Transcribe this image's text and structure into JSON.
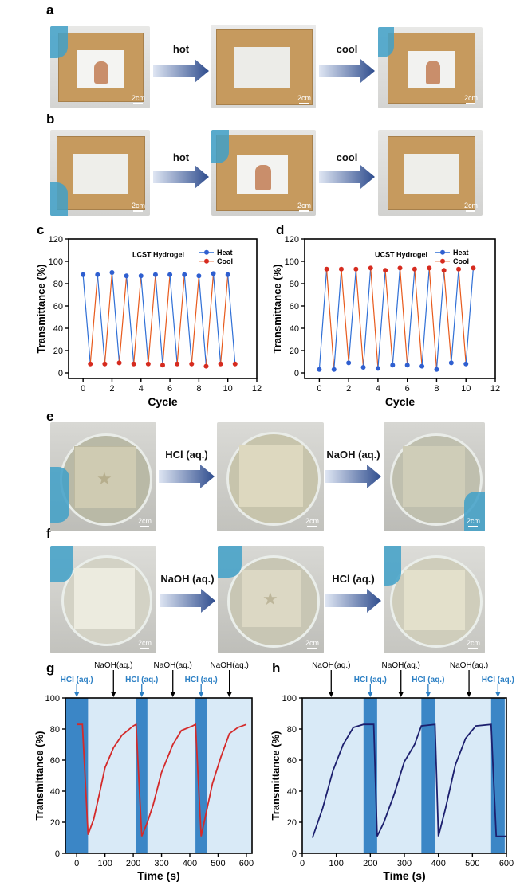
{
  "panels": {
    "a": "a",
    "b": "b",
    "c": "c",
    "d": "d",
    "e": "e",
    "f": "f",
    "g": "g",
    "h": "h"
  },
  "photo_rows": {
    "a": {
      "arrows": [
        "hot",
        "cool"
      ],
      "scales": [
        "2cm",
        "2cm",
        "2cm"
      ]
    },
    "b": {
      "arrows": [
        "hot",
        "cool"
      ],
      "scales": [
        "2cm",
        "2cm",
        "2cm"
      ]
    },
    "e": {
      "arrows": [
        "HCl (aq.)",
        "NaOH (aq.)"
      ],
      "scales": [
        "2cm",
        "2cm",
        "2cm"
      ]
    },
    "f": {
      "arrows": [
        "NaOH (aq.)",
        "HCl (aq.)"
      ],
      "scales": [
        "2cm",
        "2cm",
        "2cm"
      ]
    }
  },
  "colors": {
    "heat": "#2f6fd6",
    "cool": "#e85a1c",
    "heat_marker": "#2f5fd0",
    "cool_marker": "#d62b1f",
    "acid_band": "#3b86c6",
    "base_band": "#d9eaf7",
    "line_g": "#d42a2a",
    "line_h": "#1c1f6e",
    "label_blue": "#2b7fc4"
  },
  "chart_data": [
    {
      "id": "c",
      "type": "line",
      "title": "LCST Hydrogel",
      "xlabel": "Cycle",
      "ylabel": "Transmittance (%)",
      "xlim": [
        -1,
        12
      ],
      "ylim": [
        -5,
        120
      ],
      "xticks": [
        0,
        2,
        4,
        6,
        8,
        10,
        12
      ],
      "yticks": [
        0,
        20,
        40,
        60,
        80,
        100,
        120
      ],
      "series": [
        {
          "name": "Heat",
          "x": [
            0,
            1,
            2,
            3,
            4,
            5,
            6,
            7,
            8,
            9,
            10
          ],
          "y": [
            88,
            88,
            90,
            87,
            87,
            88,
            88,
            88,
            87,
            89,
            88
          ]
        },
        {
          "name": "Cool",
          "x": [
            0.5,
            1.5,
            2.5,
            3.5,
            4.5,
            5.5,
            6.5,
            7.5,
            8.5,
            9.5,
            10.5
          ],
          "y": [
            8,
            8,
            9,
            8,
            8,
            7,
            8,
            8,
            6,
            8,
            8
          ]
        }
      ]
    },
    {
      "id": "d",
      "type": "line",
      "title": "UCST Hydrogel",
      "xlabel": "Cycle",
      "ylabel": "Transmittance (%)",
      "xlim": [
        -1,
        12
      ],
      "ylim": [
        -5,
        120
      ],
      "xticks": [
        0,
        2,
        4,
        6,
        8,
        10,
        12
      ],
      "yticks": [
        0,
        20,
        40,
        60,
        80,
        100,
        120
      ],
      "series": [
        {
          "name": "Heat",
          "x": [
            0,
            1,
            2,
            3,
            4,
            5,
            6,
            7,
            8,
            9,
            10
          ],
          "y": [
            3,
            3,
            9,
            5,
            4,
            7,
            7,
            6,
            3,
            9,
            8
          ]
        },
        {
          "name": "Cool",
          "x": [
            0.5,
            1.5,
            2.5,
            3.5,
            4.5,
            5.5,
            6.5,
            7.5,
            8.5,
            9.5,
            10.5
          ],
          "y": [
            93,
            93,
            93,
            94,
            92,
            94,
            93,
            94,
            92,
            93,
            94
          ]
        }
      ]
    },
    {
      "id": "g",
      "type": "line",
      "xlabel": "Time (s)",
      "ylabel": "Transmittance (%)",
      "xlim": [
        -40,
        620
      ],
      "ylim": [
        0,
        100
      ],
      "xticks": [
        0,
        100,
        200,
        300,
        400,
        500,
        600
      ],
      "yticks": [
        0,
        20,
        40,
        60,
        80,
        100
      ],
      "acid_bands": [
        [
          -40,
          40
        ],
        [
          210,
          250
        ],
        [
          420,
          460
        ]
      ],
      "annotations": [
        {
          "text": "HCl (aq.)",
          "x": 0,
          "color": "blue",
          "row": 1
        },
        {
          "text": "NaOH(aq.)",
          "x": 130,
          "color": "black",
          "row": 0
        },
        {
          "text": "HCl (aq.)",
          "x": 230,
          "color": "blue",
          "row": 1
        },
        {
          "text": "NaOH(aq.)",
          "x": 340,
          "color": "black",
          "row": 0
        },
        {
          "text": "HCl (aq.)",
          "x": 440,
          "color": "blue",
          "row": 1
        },
        {
          "text": "NaOH(aq.)",
          "x": 540,
          "color": "black",
          "row": 0
        }
      ],
      "series": [
        {
          "name": "Transmittance",
          "x": [
            0,
            20,
            40,
            60,
            80,
            100,
            130,
            160,
            200,
            210,
            230,
            250,
            270,
            300,
            340,
            370,
            410,
            420,
            440,
            460,
            480,
            510,
            540,
            570,
            600
          ],
          "y": [
            83,
            83,
            12,
            22,
            38,
            55,
            68,
            76,
            82,
            83,
            11,
            20,
            31,
            52,
            70,
            79,
            82,
            83,
            11,
            28,
            45,
            62,
            77,
            81,
            83
          ]
        }
      ]
    },
    {
      "id": "h",
      "type": "line",
      "xlabel": "Time (s)",
      "ylabel": "Transmittance (%)",
      "xlim": [
        0,
        600
      ],
      "ylim": [
        0,
        100
      ],
      "xticks": [
        0,
        100,
        200,
        300,
        400,
        500,
        600
      ],
      "yticks": [
        0,
        20,
        40,
        60,
        80,
        100
      ],
      "acid_bands": [
        [
          180,
          220
        ],
        [
          350,
          390
        ],
        [
          555,
          595
        ]
      ],
      "annotations": [
        {
          "text": "NaOH(aq.)",
          "x": 85,
          "color": "black",
          "row": 0
        },
        {
          "text": "HCl (aq.)",
          "x": 200,
          "color": "blue",
          "row": 1
        },
        {
          "text": "NaOH(aq.)",
          "x": 290,
          "color": "black",
          "row": 0
        },
        {
          "text": "HCl (aq.)",
          "x": 370,
          "color": "blue",
          "row": 1
        },
        {
          "text": "NaOH(aq.)",
          "x": 490,
          "color": "black",
          "row": 0
        },
        {
          "text": "HCl (aq.)",
          "x": 575,
          "color": "blue",
          "row": 1
        }
      ],
      "series": [
        {
          "name": "Transmittance",
          "x": [
            30,
            60,
            90,
            120,
            150,
            180,
            210,
            220,
            240,
            270,
            300,
            330,
            350,
            390,
            400,
            420,
            450,
            480,
            510,
            555,
            570,
            600
          ],
          "y": [
            10,
            29,
            53,
            70,
            81,
            83,
            83,
            11,
            20,
            38,
            59,
            70,
            82,
            83,
            11,
            28,
            57,
            74,
            82,
            83,
            11,
            11
          ]
        }
      ]
    }
  ]
}
